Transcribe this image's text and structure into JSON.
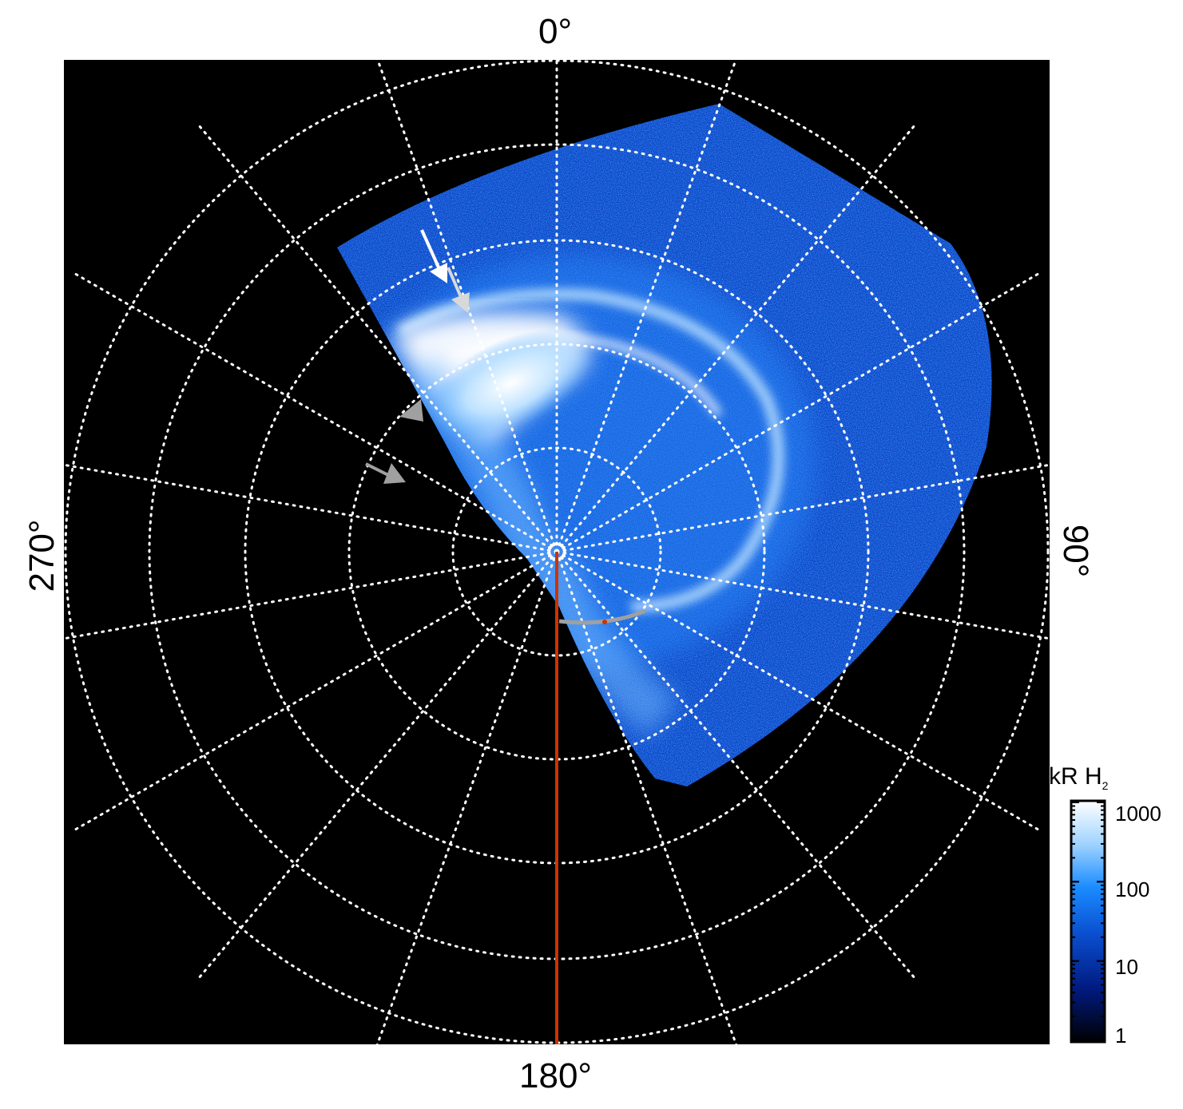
{
  "projection": {
    "azimuth_labels": {
      "top": "0°",
      "right": "90°",
      "bottom": "180°",
      "left": "270°"
    },
    "meridian_spacing_deg": 20,
    "latitude_rings": 5
  },
  "colorbar": {
    "title_main": "kR H",
    "title_sub": "2",
    "scale": "log",
    "ticks": [
      "1000",
      "100",
      "10",
      "1"
    ],
    "colors": [
      "#ffffff",
      "#9fd3ff",
      "#1a8cff",
      "#0a4fd0",
      "#001a80",
      "#000000"
    ]
  },
  "colors": {
    "background": "#000000",
    "grid": "#ffffff",
    "meridian_line": "#cc3300",
    "arc_line": "#a0a0a0",
    "arrow_white": "#ffffff",
    "arrow_gray": "#a0a0a0"
  }
}
